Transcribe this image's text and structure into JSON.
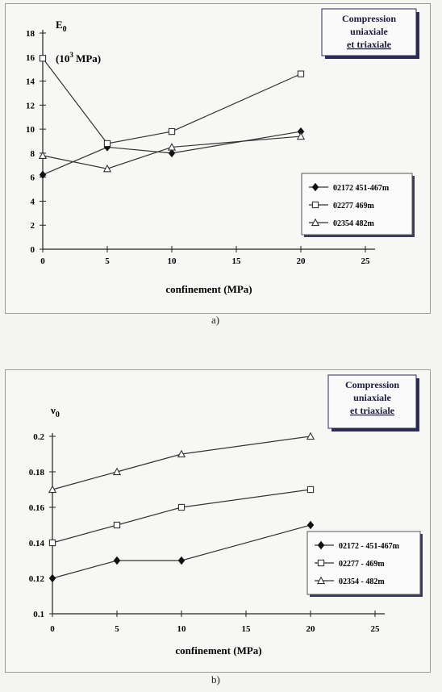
{
  "chart_data": [
    {
      "type": "line",
      "panel_label": "a)",
      "title_lines": [
        "Compression",
        "uniaxiale",
        "et triaxiale"
      ],
      "ylabel_main": "E",
      "ylabel_sub": "0",
      "ylabel_unit_pre": "(10",
      "ylabel_unit_sup": "3",
      "ylabel_unit_post": " MPa)",
      "xlabel": "confinement (MPa)",
      "xlim": [
        0,
        25
      ],
      "ylim": [
        0,
        18
      ],
      "x_ticks": [
        "0",
        "5",
        "10",
        "15",
        "20",
        "25"
      ],
      "y_ticks": [
        "0",
        "2",
        "4",
        "6",
        "8",
        "10",
        "12",
        "14",
        "16",
        "18"
      ],
      "legend_position": "right",
      "series": [
        {
          "name": "02172  451-467m",
          "marker": "diamond",
          "x": [
            0,
            5,
            10,
            20
          ],
          "values": [
            6.2,
            8.5,
            8.0,
            9.8
          ]
        },
        {
          "name": "02277  469m",
          "marker": "square",
          "x": [
            0,
            5,
            10,
            20
          ],
          "values": [
            15.9,
            8.8,
            9.8,
            14.6
          ]
        },
        {
          "name": "02354  482m",
          "marker": "triangle",
          "x": [
            0,
            5,
            10,
            20
          ],
          "values": [
            7.8,
            6.7,
            8.5,
            9.4
          ]
        }
      ]
    },
    {
      "type": "line",
      "panel_label": "b)",
      "title_lines": [
        "Compression",
        "uniaxiale",
        "et triaxiale"
      ],
      "ylabel_main": "ν",
      "ylabel_sub": "0",
      "xlabel": "confinement (MPa)",
      "xlim": [
        0,
        25
      ],
      "ylim": [
        0.1,
        0.2
      ],
      "x_ticks": [
        "0",
        "5",
        "10",
        "15",
        "20",
        "25"
      ],
      "y_ticks": [
        "0.1",
        "0.12",
        "0.14",
        "0.16",
        "0.18",
        "0.2"
      ],
      "legend_position": "right",
      "series": [
        {
          "name": "02172 - 451-467m",
          "marker": "diamond",
          "x": [
            0,
            5,
            10,
            20
          ],
          "values": [
            0.12,
            0.13,
            0.13,
            0.15
          ]
        },
        {
          "name": "02277 - 469m",
          "marker": "square",
          "x": [
            0,
            5,
            10,
            20
          ],
          "values": [
            0.14,
            0.15,
            0.16,
            0.17
          ]
        },
        {
          "name": "02354 - 482m",
          "marker": "triangle",
          "x": [
            0,
            5,
            10,
            20
          ],
          "values": [
            0.17,
            0.18,
            0.19,
            0.2
          ]
        }
      ]
    }
  ]
}
